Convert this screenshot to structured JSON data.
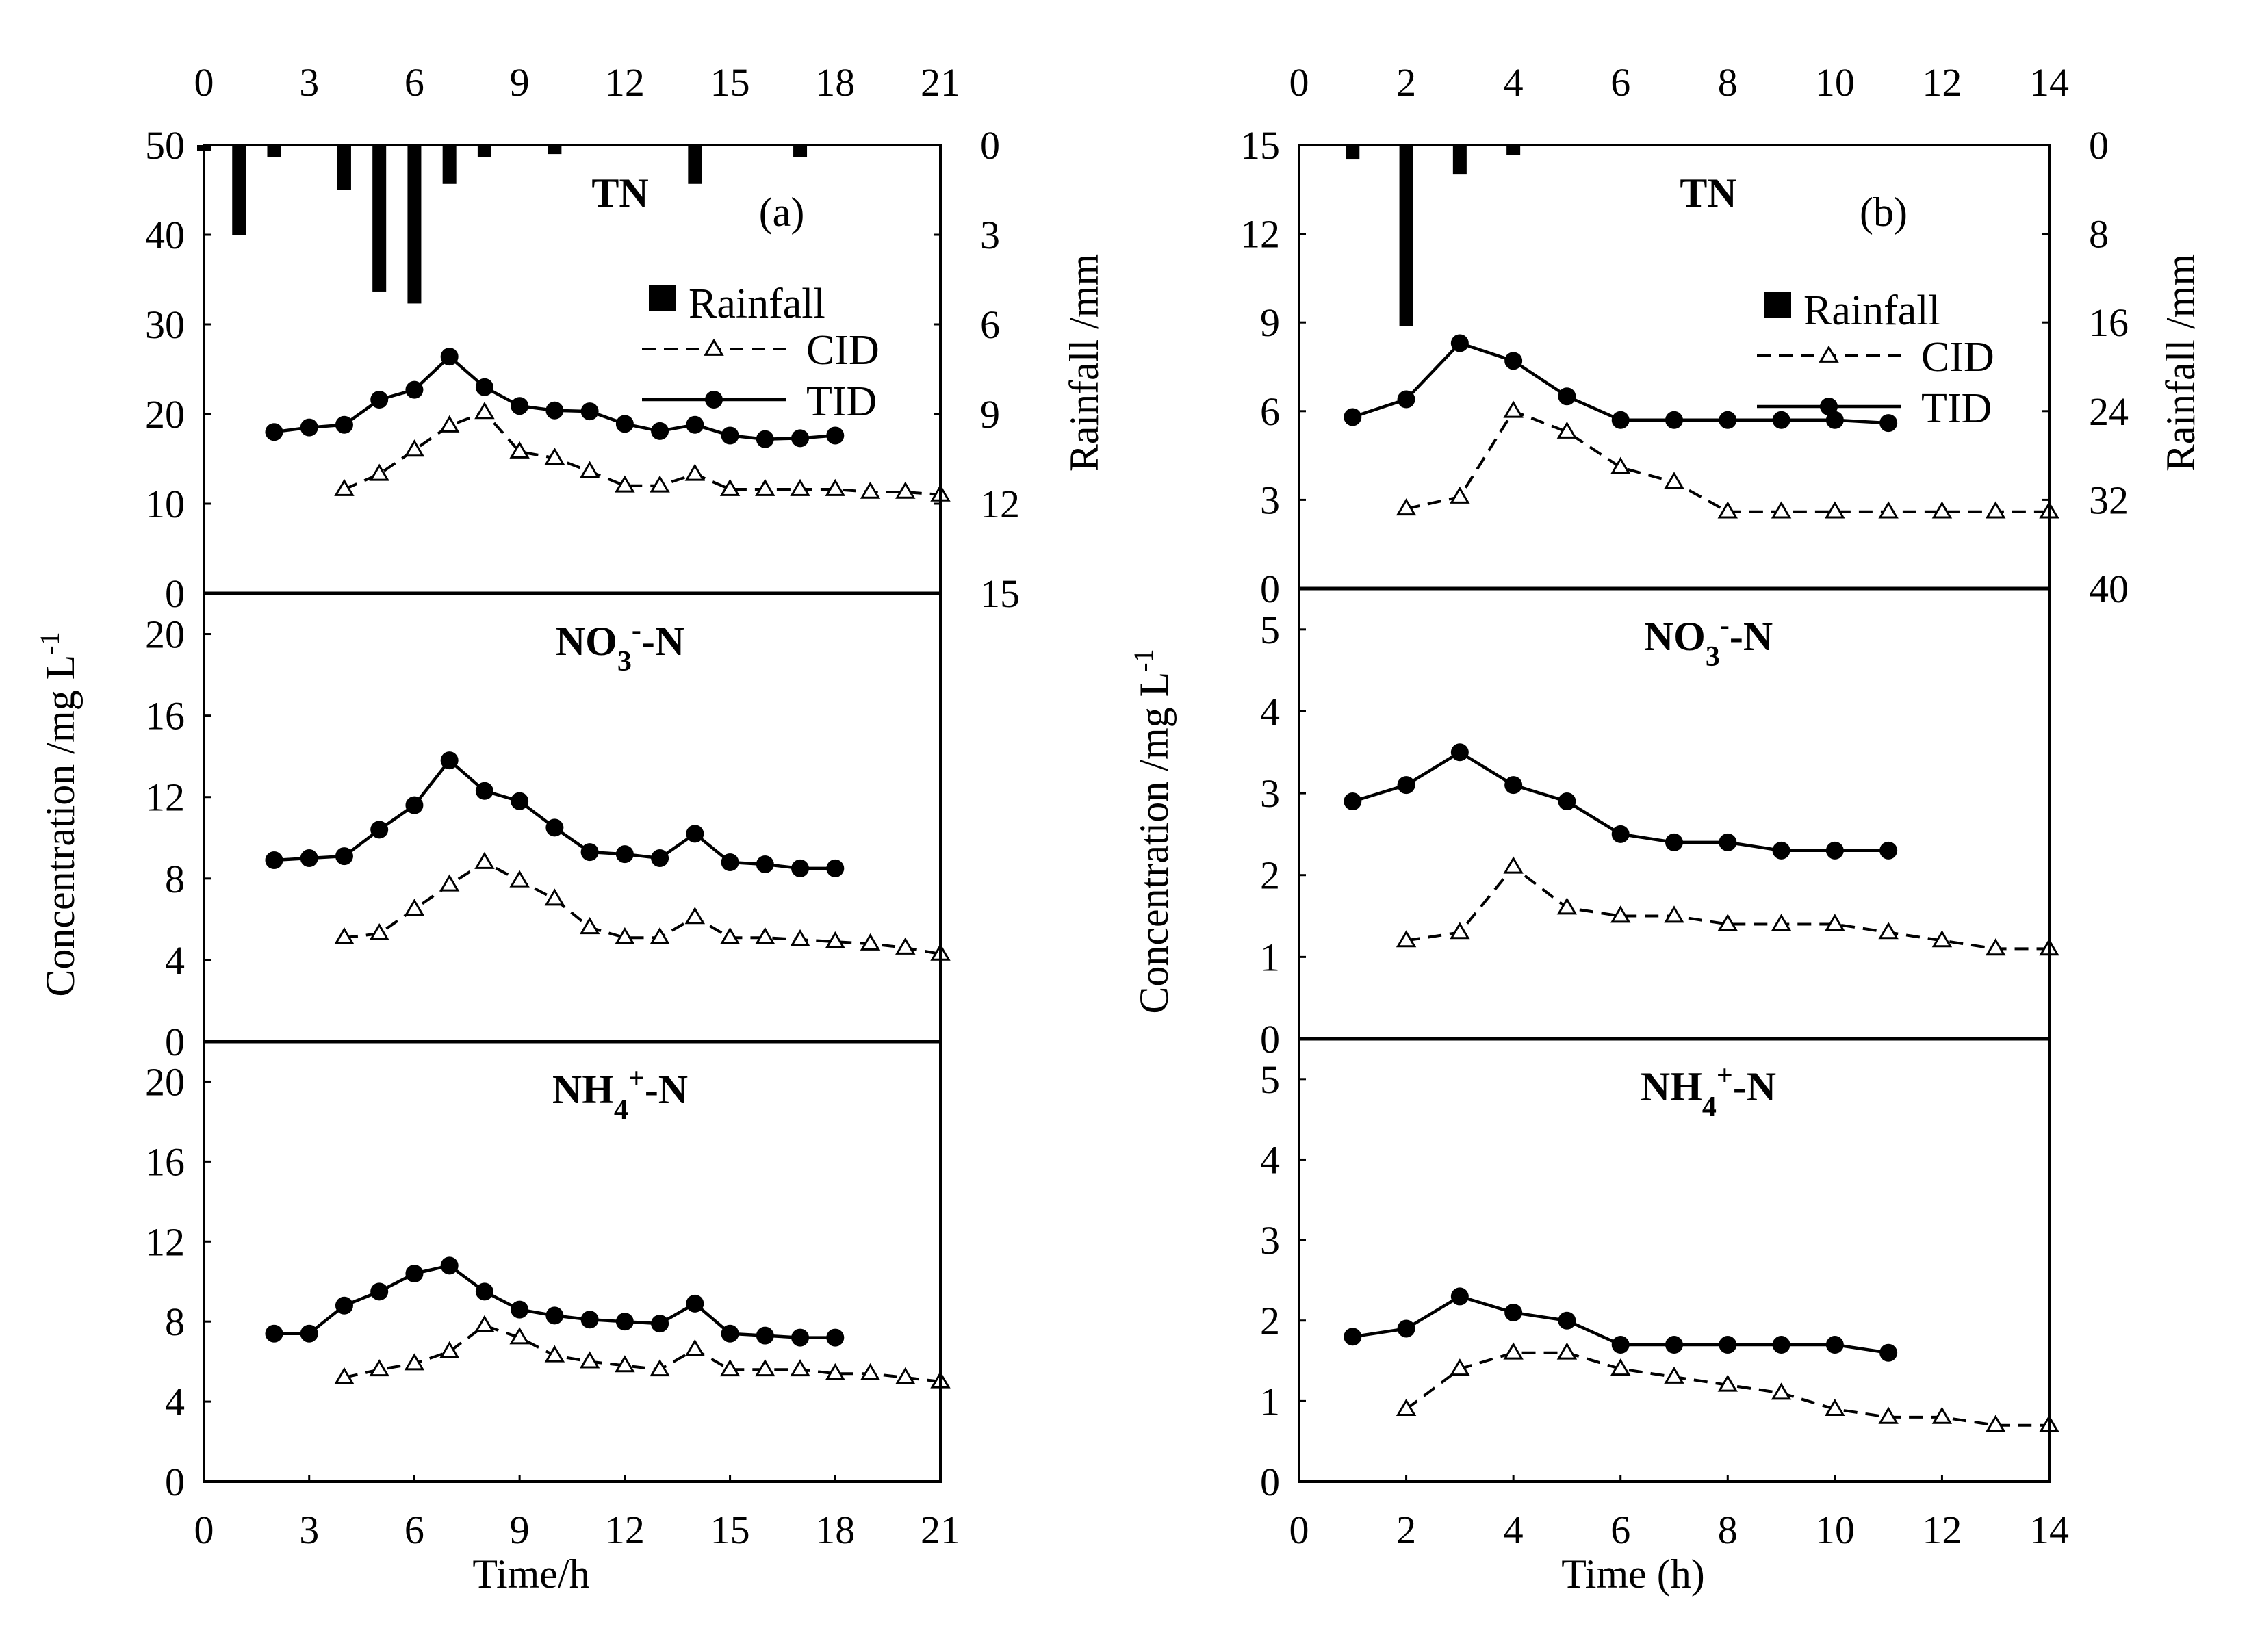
{
  "figure": {
    "y_axis_title": "Concentration /mg L",
    "y_axis_title_sup": "-1",
    "rain_axis_title": "Rainfall /mm"
  },
  "legend": {
    "rainfall": "Rainfall",
    "cid": "CID",
    "tid": "TID"
  },
  "colors": {
    "ink": "#000000",
    "background": "#ffffff"
  },
  "chart_data": [
    {
      "id": "a",
      "letter": "(a)",
      "xlabel": "Time/h",
      "xlim": [
        0,
        21
      ],
      "xticks": [
        0,
        3,
        6,
        9,
        12,
        15,
        18,
        21
      ],
      "rain": {
        "ylim": [
          0,
          15
        ],
        "ticks": [
          0,
          3,
          6,
          9,
          12,
          15
        ],
        "x": [
          0,
          1,
          2,
          4,
          5,
          6,
          7,
          8,
          10,
          14,
          17
        ],
        "values": [
          0.2,
          3,
          0.4,
          1.5,
          4.9,
          5.3,
          1.3,
          0.4,
          0.3,
          1.3,
          0.4
        ]
      },
      "subplots": [
        {
          "key": "tn",
          "type": "line",
          "title": [
            {
              "t": "TN"
            }
          ],
          "ylim": [
            0,
            50
          ],
          "ticks": [
            0,
            10,
            20,
            30,
            40,
            50
          ],
          "series": [
            {
              "name": "TID",
              "x": [
                2,
                3,
                4,
                5,
                6,
                7,
                8,
                9,
                10,
                11,
                12,
                13,
                14,
                15,
                16,
                17,
                18
              ],
              "values": [
                18,
                18.5,
                18.8,
                21.6,
                22.7,
                26.4,
                23,
                20.9,
                20.4,
                20.3,
                18.9,
                18.1,
                18.8,
                17.6,
                17.2,
                17.3,
                17.6
              ]
            },
            {
              "name": "CID",
              "x": [
                4,
                5,
                6,
                7,
                8,
                9,
                10,
                11,
                12,
                13,
                14,
                15,
                16,
                17,
                18,
                19,
                20,
                21
              ],
              "values": [
                11.6,
                13.3,
                16,
                18.7,
                20.2,
                15.8,
                15.1,
                13.6,
                12,
                12,
                13.3,
                11.6,
                11.6,
                11.6,
                11.6,
                11.3,
                11.3,
                11
              ]
            }
          ]
        },
        {
          "key": "no3",
          "type": "line",
          "title": [
            {
              "t": "NO"
            },
            {
              "t": "3",
              "sub": true
            },
            {
              "t": "-",
              "sup": true
            },
            {
              "t": "-N"
            }
          ],
          "ylim": [
            0,
            22
          ],
          "ticks": [
            0,
            4,
            8,
            12,
            16,
            20
          ],
          "series": [
            {
              "name": "TID",
              "x": [
                2,
                3,
                4,
                5,
                6,
                7,
                8,
                9,
                10,
                11,
                12,
                13,
                14,
                15,
                16,
                17,
                18
              ],
              "values": [
                8.9,
                9,
                9.1,
                10.4,
                11.6,
                13.8,
                12.3,
                11.8,
                10.5,
                9.3,
                9.2,
                9,
                10.2,
                8.8,
                8.7,
                8.5,
                8.5
              ]
            },
            {
              "name": "CID",
              "x": [
                4,
                5,
                6,
                7,
                8,
                9,
                10,
                11,
                12,
                13,
                14,
                15,
                16,
                17,
                18,
                19,
                20,
                21
              ],
              "values": [
                5.1,
                5.3,
                6.5,
                7.7,
                8.8,
                7.9,
                7,
                5.6,
                5.1,
                5.1,
                6.1,
                5.1,
                5.1,
                5,
                4.9,
                4.8,
                4.6,
                4.3
              ]
            }
          ]
        },
        {
          "key": "nh4",
          "type": "line",
          "title": [
            {
              "t": "NH"
            },
            {
              "t": "4",
              "sub": true
            },
            {
              "t": "+",
              "sup": true
            },
            {
              "t": "-N"
            }
          ],
          "ylim": [
            0,
            22
          ],
          "ticks": [
            0,
            4,
            8,
            12,
            16,
            20
          ],
          "series": [
            {
              "name": "TID",
              "x": [
                2,
                3,
                4,
                5,
                6,
                7,
                8,
                9,
                10,
                11,
                12,
                13,
                14,
                15,
                16,
                17,
                18
              ],
              "values": [
                7.4,
                7.4,
                8.8,
                9.5,
                10.4,
                10.8,
                9.5,
                8.6,
                8.3,
                8.1,
                8,
                7.9,
                8.9,
                7.4,
                7.3,
                7.2,
                7.2
              ]
            },
            {
              "name": "CID",
              "x": [
                4,
                5,
                6,
                7,
                8,
                9,
                10,
                11,
                12,
                13,
                14,
                15,
                16,
                17,
                18,
                19,
                20,
                21
              ],
              "values": [
                5.2,
                5.6,
                5.9,
                6.5,
                7.8,
                7.2,
                6.3,
                6,
                5.8,
                5.6,
                6.6,
                5.6,
                5.6,
                5.6,
                5.4,
                5.4,
                5.2,
                5
              ]
            }
          ]
        }
      ]
    },
    {
      "id": "b",
      "letter": "(b)",
      "xlabel": "Time (h)",
      "xlim": [
        0,
        14
      ],
      "xticks": [
        0,
        2,
        4,
        6,
        8,
        10,
        12,
        14
      ],
      "rain": {
        "ylim": [
          0,
          40
        ],
        "ticks": [
          0,
          8,
          16,
          24,
          32,
          40
        ],
        "x": [
          1,
          2,
          3,
          4
        ],
        "values": [
          1.3,
          16.3,
          2.6,
          0.9
        ]
      },
      "subplots": [
        {
          "key": "tn",
          "type": "line",
          "title": [
            {
              "t": "TN"
            }
          ],
          "ylim": [
            0,
            15
          ],
          "ticks": [
            0,
            3,
            6,
            9,
            12,
            15
          ],
          "series": [
            {
              "name": "TID",
              "x": [
                1,
                2,
                3,
                4,
                5,
                6,
                7,
                8,
                9,
                10,
                11
              ],
              "values": [
                5.8,
                6.4,
                8.3,
                7.7,
                6.5,
                5.7,
                5.7,
                5.7,
                5.7,
                5.7,
                5.6
              ]
            },
            {
              "name": "CID",
              "x": [
                2,
                3,
                4,
                5,
                6,
                7,
                8,
                9,
                10,
                11,
                12,
                13,
                14
              ],
              "values": [
                2.7,
                3.1,
                6,
                5.3,
                4.1,
                3.6,
                2.6,
                2.6,
                2.6,
                2.6,
                2.6,
                2.6,
                2.6
              ]
            }
          ]
        },
        {
          "key": "no3",
          "type": "line",
          "title": [
            {
              "t": "NO"
            },
            {
              "t": "3",
              "sub": true
            },
            {
              "t": "-",
              "sup": true
            },
            {
              "t": "-N"
            }
          ],
          "ylim": [
            0,
            5.5
          ],
          "ticks": [
            0,
            1,
            2,
            3,
            4,
            5
          ],
          "series": [
            {
              "name": "TID",
              "x": [
                1,
                2,
                3,
                4,
                5,
                6,
                7,
                8,
                9,
                10,
                11
              ],
              "values": [
                2.9,
                3.1,
                3.5,
                3.1,
                2.9,
                2.5,
                2.4,
                2.4,
                2.3,
                2.3,
                2.3
              ]
            },
            {
              "name": "CID",
              "x": [
                2,
                3,
                4,
                5,
                6,
                7,
                8,
                9,
                10,
                11,
                12,
                13,
                14
              ],
              "values": [
                1.2,
                1.3,
                2.1,
                1.6,
                1.5,
                1.5,
                1.4,
                1.4,
                1.4,
                1.3,
                1.2,
                1.1,
                1.1
              ]
            }
          ]
        },
        {
          "key": "nh4",
          "type": "line",
          "title": [
            {
              "t": "NH"
            },
            {
              "t": "4",
              "sub": true
            },
            {
              "t": "+",
              "sup": true
            },
            {
              "t": "-N"
            }
          ],
          "ylim": [
            0,
            5.5
          ],
          "ticks": [
            0,
            1,
            2,
            3,
            4,
            5
          ],
          "series": [
            {
              "name": "TID",
              "x": [
                1,
                2,
                3,
                4,
                5,
                6,
                7,
                8,
                9,
                10,
                11
              ],
              "values": [
                1.8,
                1.9,
                2.3,
                2.1,
                2,
                1.7,
                1.7,
                1.7,
                1.7,
                1.7,
                1.6
              ]
            },
            {
              "name": "CID",
              "x": [
                2,
                3,
                4,
                5,
                6,
                7,
                8,
                9,
                10,
                11,
                12,
                13,
                14
              ],
              "values": [
                0.9,
                1.4,
                1.6,
                1.6,
                1.4,
                1.3,
                1.2,
                1.1,
                0.9,
                0.8,
                0.8,
                0.7,
                0.7
              ]
            }
          ]
        }
      ]
    }
  ]
}
